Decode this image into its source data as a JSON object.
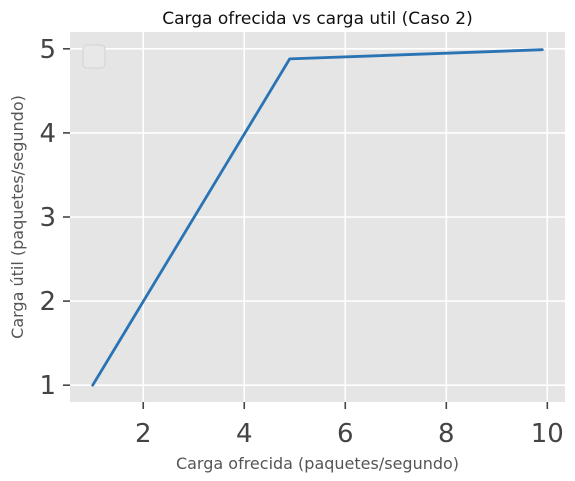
{
  "chart_data": {
    "type": "line",
    "title": "Carga ofrecida vs carga util (Caso 2)",
    "xlabel": "Carga ofrecida (paquetes/segundo)",
    "ylabel": "Carga útil (paquetes/segundo)",
    "xlim": [
      0.55,
      10.35
    ],
    "ylim": [
      0.8,
      5.2
    ],
    "x_ticks": [
      "2",
      "4",
      "6",
      "8",
      "10"
    ],
    "y_ticks": [
      "1",
      "2",
      "3",
      "4",
      "5"
    ],
    "grid": true,
    "legend": "top-left, empty",
    "colors": {
      "plot_background": "#e5e5e5",
      "grid": "#ffffff",
      "line": "#2a74b5"
    },
    "series": [
      {
        "x": [
          1,
          4.9,
          9.9
        ],
        "y": [
          1,
          4.88,
          4.99
        ]
      }
    ]
  }
}
